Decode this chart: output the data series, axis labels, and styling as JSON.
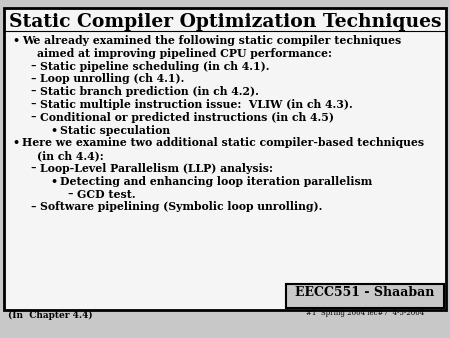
{
  "bg_color": "#c8c8c8",
  "slide_bg": "#f5f5f5",
  "border_color": "#000000",
  "title": "Static Compiler Optimization Techniques",
  "footer_box_text": "EECC551 - Shaaban",
  "footer_sub_text": "#1  Spring 2004 lec#7  4-5-2004",
  "footer_left_text": "(In  Chapter 4.4)",
  "lines": [
    {
      "level": 0,
      "bullet": "•",
      "text": "We already examined the following static compiler techniques\n    aimed at improving pipelined CPU performance:"
    },
    {
      "level": 1,
      "bullet": "–",
      "text": "Static pipeline scheduling (in ch 4.1)."
    },
    {
      "level": 1,
      "bullet": "–",
      "text": "Loop unrolling (ch 4.1)."
    },
    {
      "level": 1,
      "bullet": "–",
      "text": "Static branch prediction (in ch 4.2)."
    },
    {
      "level": 1,
      "bullet": "–",
      "text": "Static multiple instruction issue:  VLIW (in ch 4.3)."
    },
    {
      "level": 1,
      "bullet": "–",
      "text": "Conditional or predicted instructions (in ch 4.5)"
    },
    {
      "level": 2,
      "bullet": "•",
      "text": "Static speculation"
    },
    {
      "level": 0,
      "bullet": "•",
      "text": "Here we examine two additional static compiler-based techniques\n    (in ch 4.4):"
    },
    {
      "level": 1,
      "bullet": "–",
      "text": "Loop-Level Parallelism (LLP) analysis:"
    },
    {
      "level": 2,
      "bullet": "•",
      "text": "Detecting and enhancing loop iteration parallelism"
    },
    {
      "level": 3,
      "bullet": "–",
      "text": "GCD test."
    },
    {
      "level": 1,
      "bullet": "–",
      "text": "Software pipelining (Symbolic loop unrolling)."
    }
  ]
}
